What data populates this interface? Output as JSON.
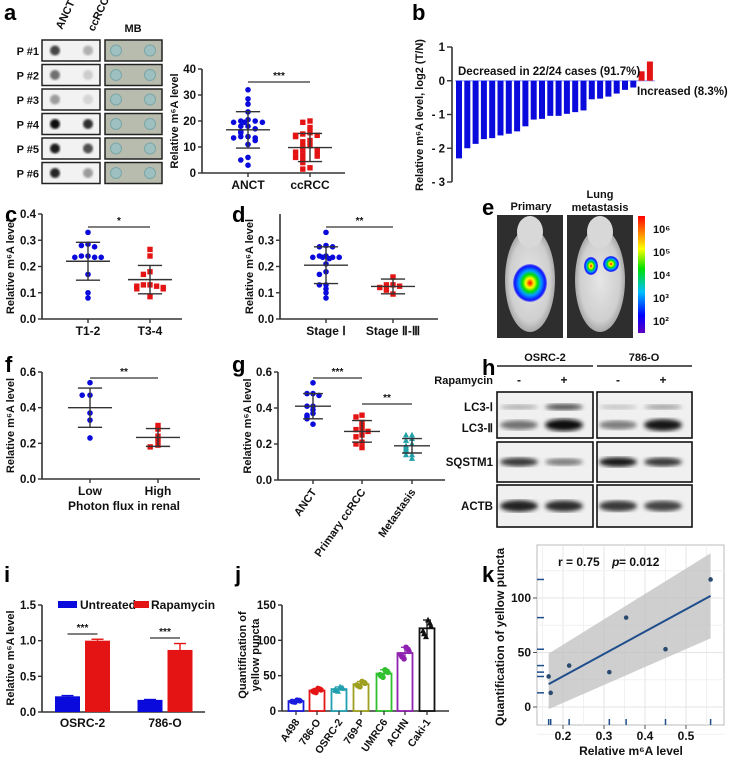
{
  "colors": {
    "blue": "#0a0adc",
    "red": "#e41414",
    "teal": "#22a0a8",
    "axis": "#333333"
  },
  "panel_a_blot": {
    "lane_labels": [
      "ANCT",
      "ccRCC"
    ],
    "mb_label": "MB",
    "rows": [
      "P #1",
      "P #2",
      "P #3",
      "P #4",
      "P #5",
      "P #6"
    ]
  },
  "panel_e": {
    "titles": [
      "Primary",
      "Lung",
      "metastasis"
    ],
    "colorbar_labels": [
      "10⁶",
      "10⁵",
      "10⁴",
      "10³",
      "10²"
    ]
  },
  "panel_h": {
    "cell_lines": [
      "OSRC-2",
      "786-O"
    ],
    "treatment_label": "Rapamycin",
    "treatment_marks": [
      "-",
      "+",
      "-",
      "+"
    ],
    "bands": [
      "LC3-Ⅰ",
      "LC3-Ⅱ",
      "SQSTM1",
      "ACTB"
    ]
  },
  "chart_data": [
    {
      "panel": "a",
      "type": "scatter",
      "ylabel": "Relative m⁶A level",
      "categories": [
        "ANCT",
        "ccRCC"
      ],
      "ylim": [
        0,
        40
      ],
      "yticks": [
        "0",
        "10",
        "20",
        "30",
        "40"
      ],
      "series": [
        {
          "values": [
            32,
            28.5,
            26.5,
            23.5,
            20.5,
            20,
            20,
            19.5,
            19.5,
            19.5,
            18,
            18,
            17,
            16,
            15.5,
            14,
            14,
            13.5,
            13.5,
            12.5,
            11,
            6,
            5,
            3
          ],
          "mean": 16.6,
          "sd": 7.0,
          "marker": "circle"
        },
        {
          "values": [
            20,
            19.5,
            17.5,
            15.5,
            15,
            14.5,
            14.5,
            14,
            12.5,
            12,
            10.5,
            10,
            9,
            9,
            8.5,
            8,
            7,
            7,
            6.5,
            6,
            5,
            4,
            2,
            1.5
          ],
          "mean": 9.8,
          "sd": 5.4,
          "marker": "square"
        }
      ],
      "significance": [
        {
          "from": 0,
          "to": 1,
          "label": "***"
        }
      ]
    },
    {
      "panel": "b",
      "type": "bar",
      "ylabel": "Relative m⁶A level, log2 (T/N)",
      "ylim": [
        -3,
        1
      ],
      "yticks": [
        "- 3",
        "- 2",
        "- 1",
        "0",
        "1"
      ],
      "values": [
        -2.3,
        -2.0,
        -1.87,
        -1.73,
        -1.7,
        -1.62,
        -1.57,
        -1.5,
        -1.35,
        -1.15,
        -1.13,
        -1.04,
        -1.04,
        -0.98,
        -0.93,
        -0.88,
        -0.55,
        -0.53,
        -0.47,
        -0.38,
        -0.27,
        -0.2,
        0.28,
        0.57
      ],
      "annotations": [
        "Decreased in 22/24 cases (91.7%)",
        "Increased (8.3%)"
      ]
    },
    {
      "panel": "c",
      "type": "scatter",
      "ylabel": "Relative m⁶A level",
      "categories": [
        "T1-2",
        "T3-4"
      ],
      "ylim": [
        0,
        0.4
      ],
      "yticks": [
        "0.0",
        "0.1",
        "0.2",
        "0.3",
        "0.4"
      ],
      "series": [
        {
          "values": [
            0.33,
            0.285,
            0.28,
            0.275,
            0.24,
            0.24,
            0.235,
            0.235,
            0.235,
            0.17,
            0.1,
            0.08
          ],
          "mean": 0.22,
          "sd": 0.072,
          "marker": "circle"
        },
        {
          "values": [
            0.265,
            0.24,
            0.18,
            0.17,
            0.13,
            0.13,
            0.125,
            0.125,
            0.12,
            0.115,
            0.115,
            0.085
          ],
          "mean": 0.15,
          "sd": 0.054,
          "marker": "square"
        }
      ],
      "significance": [
        {
          "from": 0,
          "to": 1,
          "label": "*"
        }
      ]
    },
    {
      "panel": "d",
      "type": "scatter",
      "ylabel": "Relative m⁶A level",
      "categories": [
        "Stage Ⅰ",
        "Stage Ⅱ-Ⅲ"
      ],
      "ylim": [
        0,
        0.4
      ],
      "yticks": [
        "0.0",
        "0.1",
        "0.2",
        "0.3",
        ""
      ],
      "series": [
        {
          "values": [
            0.33,
            0.28,
            0.275,
            0.275,
            0.24,
            0.24,
            0.235,
            0.235,
            0.235,
            0.235,
            0.23,
            0.21,
            0.18,
            0.17,
            0.13,
            0.13,
            0.115,
            0.1,
            0.08
          ],
          "mean": 0.205,
          "sd": 0.07,
          "marker": "circle"
        },
        {
          "values": [
            0.16,
            0.13,
            0.13,
            0.125,
            0.12,
            0.11,
            0.095
          ],
          "mean": 0.124,
          "sd": 0.028,
          "marker": "square"
        }
      ],
      "significance": [
        {
          "from": 0,
          "to": 1,
          "label": "**"
        }
      ]
    },
    {
      "panel": "f",
      "type": "scatter",
      "ylabel": "Relative m⁶A level",
      "xlabel": "Photon flux in renal",
      "categories": [
        "Low",
        "High"
      ],
      "ylim": [
        0,
        0.6
      ],
      "yticks": [
        "0.0",
        "0.2",
        "0.4",
        "0.6"
      ],
      "series": [
        {
          "values": [
            0.54,
            0.47,
            0.47,
            0.37,
            0.33,
            0.23
          ],
          "mean": 0.4,
          "sd": 0.11,
          "marker": "circle"
        },
        {
          "values": [
            0.3,
            0.28,
            0.24,
            0.22,
            0.19,
            0.18
          ],
          "mean": 0.233,
          "sd": 0.05,
          "marker": "square"
        }
      ],
      "significance": [
        {
          "from": 0,
          "to": 1,
          "label": "**"
        }
      ]
    },
    {
      "panel": "g",
      "type": "scatter",
      "ylabel": "Relative m⁶A level",
      "categories": [
        "ANCT",
        "Primary ccRCC",
        "Metastasis"
      ],
      "ylim": [
        0,
        0.6
      ],
      "yticks": [
        "0.0",
        "0.2",
        "0.4",
        "0.6"
      ],
      "series": [
        {
          "values": [
            0.54,
            0.48,
            0.48,
            0.47,
            0.41,
            0.41,
            0.39,
            0.37,
            0.36,
            0.35,
            0.34,
            0.31
          ],
          "mean": 0.41,
          "sd": 0.07,
          "marker": "circle"
        },
        {
          "values": [
            0.36,
            0.35,
            0.32,
            0.3,
            0.28,
            0.28,
            0.27,
            0.25,
            0.24,
            0.21,
            0.2,
            0.18
          ],
          "mean": 0.27,
          "sd": 0.06,
          "marker": "square"
        },
        {
          "values": [
            0.25,
            0.25,
            0.23,
            0.22,
            0.2,
            0.19,
            0.18,
            0.17,
            0.16,
            0.14,
            0.14,
            0.12
          ],
          "mean": 0.19,
          "sd": 0.04,
          "marker": "triangle"
        }
      ],
      "significance": [
        {
          "from": 0,
          "to": 1,
          "label": "***"
        },
        {
          "from": 1,
          "to": 2,
          "label": "**"
        }
      ]
    },
    {
      "panel": "i",
      "type": "bar",
      "ylabel": "Relative m⁶A level",
      "categories": [
        "OSRC-2",
        "786-O"
      ],
      "ylim": [
        0,
        1.5
      ],
      "yticks": [
        "0.0",
        "0.5",
        "1.0",
        "1.5"
      ],
      "legend": "top",
      "series": [
        {
          "name": "Untreated",
          "values": [
            0.22,
            0.17
          ],
          "errors": [
            0.01,
            0.005
          ]
        },
        {
          "name": "Rapamycin",
          "values": [
            1.0,
            0.87
          ],
          "errors": [
            0.02,
            0.09
          ]
        }
      ],
      "significance": [
        {
          "group": 0,
          "label": "***"
        },
        {
          "group": 1,
          "label": "***"
        }
      ]
    },
    {
      "panel": "j",
      "type": "bar",
      "ylabel": [
        "Quantification of",
        "yellow puncta"
      ],
      "categories": [
        "A498",
        "786-O",
        "OSRC-2",
        "769-P",
        "UMRC6",
        "ACHN",
        "Caki-1"
      ],
      "ylim": [
        0,
        150
      ],
      "yticks": [
        "0",
        "50",
        "100",
        "150"
      ],
      "values": [
        14,
        29,
        31,
        38,
        53,
        82,
        117
      ],
      "bar_colors": [
        "#1a1adc",
        "#e41414",
        "#22a0b0",
        "#a0a020",
        "#30c030",
        "#9020b0",
        "#111111"
      ]
    },
    {
      "panel": "k",
      "type": "scatter",
      "ylabel": "Quantification of yellow puncta",
      "xlabel": "Relative m⁶A level",
      "stats": {
        "r": "r = 0.75",
        "p_label": "p",
        "p_value": " = 0.012"
      },
      "xlim": [
        0.15,
        0.57
      ],
      "ylim": [
        -15,
        145
      ],
      "xticks": [
        "0.2",
        "0.3",
        "0.4",
        "0.5"
      ],
      "yticks": [
        "0",
        "50",
        "100"
      ],
      "x": [
        0.165,
        0.17,
        0.215,
        0.313,
        0.354,
        0.45,
        0.56
      ],
      "y": [
        28,
        13,
        38,
        32,
        82,
        53,
        117
      ],
      "fit": {
        "x": [
          0.165,
          0.56
        ],
        "y": [
          21,
          102
        ],
        "ci_low": [
          -2,
          63
        ],
        "ci_high": [
          49,
          141
        ]
      }
    }
  ]
}
